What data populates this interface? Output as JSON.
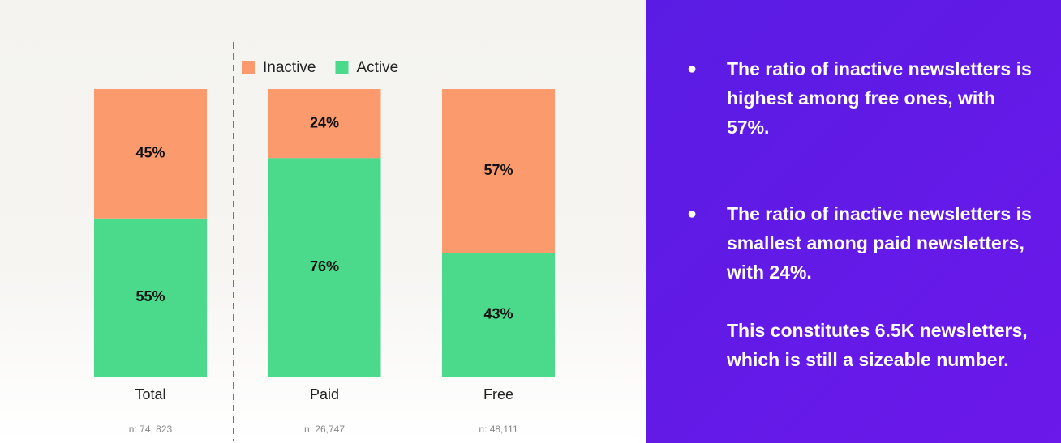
{
  "chart_data": {
    "type": "stacked_bar",
    "categories": [
      "Total",
      "Paid",
      "Free"
    ],
    "series": [
      {
        "name": "Inactive",
        "color": "#fb9a6d",
        "values": [
          45,
          24,
          57
        ],
        "value_labels": [
          "45%",
          "24%",
          "57%"
        ]
      },
      {
        "name": "Active",
        "color": "#4bd98b",
        "values": [
          55,
          76,
          43
        ],
        "value_labels": [
          "55%",
          "76%",
          "43%"
        ]
      }
    ],
    "ylim": [
      0,
      100
    ],
    "sample_labels": [
      "n: 74, 823",
      "n: 26,747",
      "n: 48,111"
    ]
  },
  "panel": {
    "points": [
      "The ratio of inactive newsletters is highest among free ones, with 57%.",
      "The ratio of inactive newsletters is smallest among paid newsletters, with 24%."
    ],
    "note": "This constitutes 6.5K newsletters, which is still a sizeable number."
  }
}
